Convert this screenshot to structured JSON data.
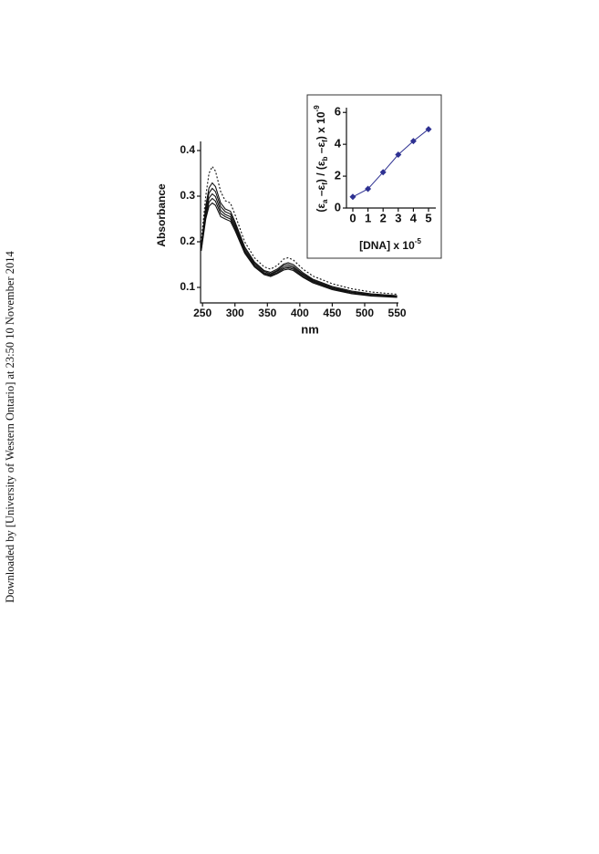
{
  "sidebar_text": "Downloaded by [University of Western Ontario] at 23:50 10 November 2014",
  "chart_data": [
    {
      "type": "line",
      "xlabel": "nm",
      "ylabel": "Absorbance",
      "x": [
        248,
        255,
        260,
        265,
        270,
        278,
        285,
        293,
        300,
        315,
        330,
        345,
        355,
        365,
        375,
        382,
        390,
        405,
        420,
        450,
        480,
        510,
        550
      ],
      "xlim": [
        247,
        552
      ],
      "ylim": [
        0.066,
        0.42
      ],
      "xticks": [
        250,
        300,
        350,
        400,
        450,
        500,
        550
      ],
      "yticks": [
        0.1,
        0.2,
        0.3,
        0.4
      ],
      "series": [
        {
          "color": "#111111",
          "style": "dotted",
          "values": [
            0.2,
            0.3,
            0.35,
            0.365,
            0.355,
            0.31,
            0.29,
            0.285,
            0.26,
            0.2,
            0.165,
            0.145,
            0.14,
            0.148,
            0.162,
            0.165,
            0.16,
            0.14,
            0.125,
            0.108,
            0.097,
            0.09,
            0.085
          ]
        },
        {
          "color": "#111111",
          "style": "solid",
          "values": [
            0.191,
            0.278,
            0.318,
            0.329,
            0.321,
            0.285,
            0.272,
            0.267,
            0.244,
            0.189,
            0.156,
            0.137,
            0.133,
            0.14,
            0.151,
            0.154,
            0.15,
            0.132,
            0.118,
            0.102,
            0.092,
            0.086,
            0.082
          ]
        },
        {
          "color": "#111111",
          "style": "solid",
          "values": [
            0.188,
            0.27,
            0.307,
            0.317,
            0.31,
            0.277,
            0.266,
            0.261,
            0.239,
            0.185,
            0.153,
            0.135,
            0.13,
            0.137,
            0.148,
            0.15,
            0.146,
            0.129,
            0.116,
            0.1,
            0.09,
            0.085,
            0.081
          ]
        },
        {
          "color": "#111111",
          "style": "solid",
          "values": [
            0.185,
            0.263,
            0.296,
            0.305,
            0.299,
            0.269,
            0.26,
            0.255,
            0.234,
            0.181,
            0.15,
            0.132,
            0.128,
            0.135,
            0.144,
            0.146,
            0.143,
            0.127,
            0.114,
            0.098,
            0.089,
            0.083,
            0.08
          ]
        },
        {
          "color": "#111111",
          "style": "solid",
          "values": [
            0.182,
            0.256,
            0.287,
            0.295,
            0.289,
            0.262,
            0.255,
            0.25,
            0.229,
            0.178,
            0.147,
            0.13,
            0.126,
            0.132,
            0.141,
            0.143,
            0.14,
            0.124,
            0.112,
            0.097,
            0.087,
            0.082,
            0.079
          ]
        },
        {
          "color": "#111111",
          "style": "solid",
          "values": [
            0.18,
            0.25,
            0.278,
            0.285,
            0.28,
            0.255,
            0.25,
            0.245,
            0.225,
            0.175,
            0.145,
            0.128,
            0.124,
            0.13,
            0.138,
            0.14,
            0.137,
            0.122,
            0.11,
            0.095,
            0.086,
            0.081,
            0.078
          ]
        }
      ]
    },
    {
      "type": "line",
      "xlabel_parts": [
        "[DNA] x 10",
        "-5"
      ],
      "ylabel_parts": [
        "(ε",
        "a",
        " –ε",
        "f",
        ") / (ε",
        "b",
        " –ε",
        "f",
        ") x 10",
        "-9"
      ],
      "x": [
        0,
        1,
        2,
        3,
        4,
        5
      ],
      "xlim": [
        -0.42,
        5.48
      ],
      "ylim": [
        0,
        6.3
      ],
      "xticks": [
        0,
        1,
        2,
        3,
        4,
        5
      ],
      "yticks": [
        0,
        2,
        4,
        6
      ],
      "markers": "diamond",
      "series": [
        {
          "color": "#2e3192",
          "style": "solid",
          "values": [
            0.7,
            1.2,
            2.25,
            3.35,
            4.2,
            4.95
          ]
        }
      ]
    }
  ]
}
